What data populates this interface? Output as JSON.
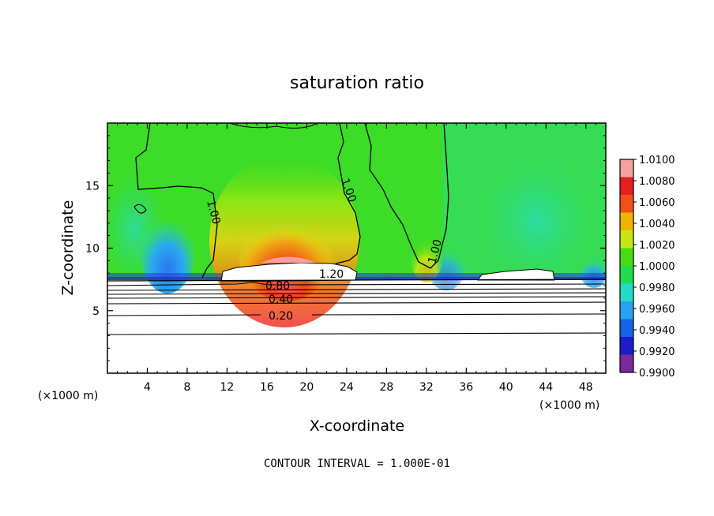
{
  "chart_data": {
    "type": "heatmap",
    "title": "saturation ratio",
    "xlabel": "X-coordinate",
    "ylabel": "Z-coordinate",
    "x_units": "(×1000 m)",
    "y_units": "(×1000 m)",
    "xlim": [
      0,
      50
    ],
    "ylim": [
      0,
      20
    ],
    "x_ticks": [
      4,
      8,
      12,
      16,
      20,
      24,
      28,
      32,
      36,
      40,
      44,
      48
    ],
    "y_ticks": [
      5,
      10,
      15
    ],
    "colorbar": {
      "levels": [
        0.99,
        0.992,
        0.994,
        0.996,
        0.998,
        1.0,
        1.002,
        1.004,
        1.006,
        1.008,
        1.01
      ],
      "labels": [
        "0.9900",
        "0.9920",
        "0.9940",
        "0.9960",
        "0.9980",
        "1.0000",
        "1.0020",
        "1.0040",
        "1.0060",
        "1.0080",
        "1.0100"
      ],
      "colors": [
        "#7a2a9c",
        "#1c1cc8",
        "#1464e6",
        "#2aa0f0",
        "#22dcc8",
        "#22dc50",
        "#46dc14",
        "#c8e614",
        "#f0b400",
        "#f05014",
        "#e61e1e",
        "#f5a0a0"
      ]
    },
    "contours": {
      "labels": [
        "1.00",
        "1.00",
        "1.00",
        "1.20",
        "0.80",
        "0.40",
        "0.20"
      ],
      "interval": "1.000E-01"
    },
    "features": {
      "moist_plume_center_x": 18,
      "moist_plume_top_z": 15,
      "boundary_layer_top_z": 7.5,
      "dry_regions_x": [
        6,
        33
      ]
    }
  },
  "footer": "CONTOUR INTERVAL = 1.000E-01"
}
